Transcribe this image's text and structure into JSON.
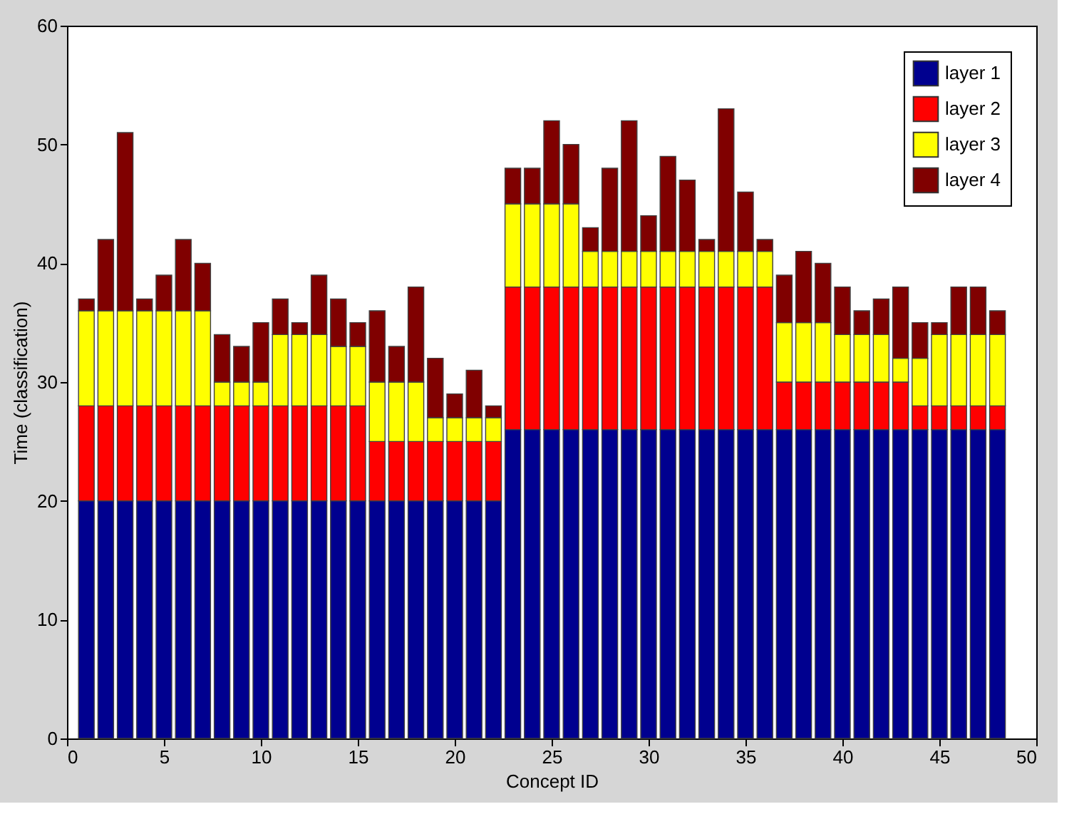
{
  "chart_data": {
    "type": "bar",
    "stacked": true,
    "xlabel": "Concept ID",
    "ylabel": "Time (classification)",
    "x": [
      1,
      2,
      3,
      4,
      5,
      6,
      7,
      8,
      9,
      10,
      11,
      12,
      13,
      14,
      15,
      16,
      17,
      18,
      19,
      20,
      21,
      22,
      23,
      24,
      25,
      26,
      27,
      28,
      29,
      30,
      31,
      32,
      33,
      34,
      35,
      36,
      37,
      38,
      39,
      40,
      41,
      42,
      43,
      44,
      45,
      46,
      47,
      48
    ],
    "series": [
      {
        "name": "layer 1",
        "color": "#00008f",
        "values": [
          20,
          20,
          20,
          20,
          20,
          20,
          20,
          20,
          20,
          20,
          20,
          20,
          20,
          20,
          20,
          20,
          20,
          20,
          20,
          20,
          20,
          20,
          26,
          26,
          26,
          26,
          26,
          26,
          26,
          26,
          26,
          26,
          26,
          26,
          26,
          26,
          26,
          26,
          26,
          26,
          26,
          26,
          26,
          26,
          26,
          26,
          26,
          26
        ]
      },
      {
        "name": "layer 2",
        "color": "#ff0000",
        "values": [
          8,
          8,
          8,
          8,
          8,
          8,
          8,
          8,
          8,
          8,
          8,
          8,
          8,
          8,
          8,
          5,
          5,
          5,
          5,
          5,
          5,
          5,
          12,
          12,
          12,
          12,
          12,
          12,
          12,
          12,
          12,
          12,
          12,
          12,
          12,
          12,
          4,
          4,
          4,
          4,
          4,
          4,
          4,
          2,
          2,
          2,
          2,
          2
        ]
      },
      {
        "name": "layer 3",
        "color": "#ffff00",
        "values": [
          8,
          8,
          8,
          8,
          8,
          8,
          8,
          2,
          2,
          2,
          6,
          6,
          6,
          5,
          5,
          5,
          5,
          5,
          2,
          2,
          2,
          2,
          7,
          7,
          7,
          7,
          3,
          3,
          3,
          3,
          3,
          3,
          3,
          3,
          3,
          3,
          5,
          5,
          5,
          4,
          4,
          4,
          2,
          4,
          6,
          6,
          6,
          6
        ]
      },
      {
        "name": "layer 4",
        "color": "#800000",
        "values": [
          1,
          6,
          15,
          1,
          3,
          6,
          4,
          4,
          3,
          5,
          3,
          1,
          5,
          4,
          2,
          6,
          3,
          8,
          5,
          2,
          4,
          1,
          3,
          3,
          7,
          5,
          2,
          7,
          11,
          3,
          8,
          6,
          1,
          12,
          5,
          1,
          4,
          6,
          5,
          4,
          2,
          3,
          6,
          3,
          1,
          4,
          4,
          2
        ]
      }
    ],
    "xlim": [
      0,
      50
    ],
    "xticks": [
      0,
      5,
      10,
      15,
      20,
      25,
      30,
      35,
      40,
      45,
      50
    ],
    "ylim": [
      0,
      60
    ],
    "yticks": [
      0,
      10,
      20,
      30,
      40,
      50,
      60
    ],
    "grid": false,
    "legend": "top right"
  }
}
